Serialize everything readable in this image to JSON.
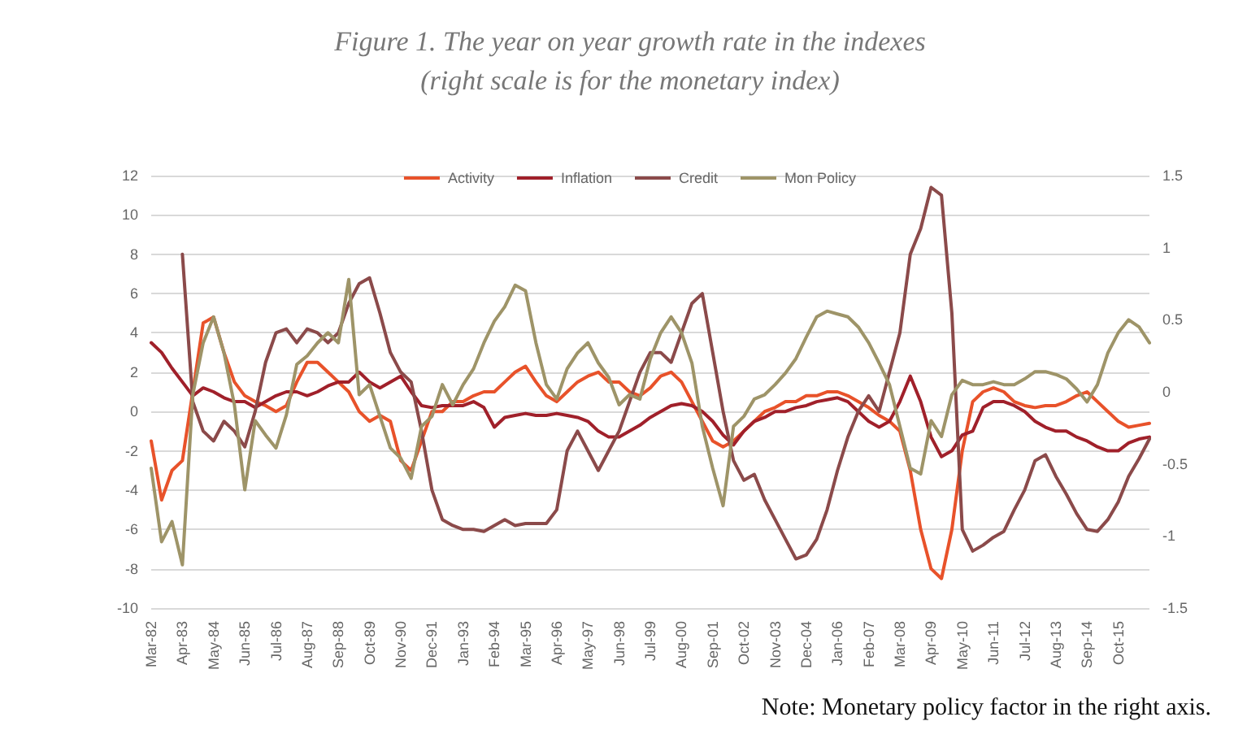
{
  "chart_data": {
    "type": "line",
    "title": "Figure 1. The year on year growth rate in the indexes",
    "subtitle": "(right scale is for the monetary index)",
    "annotations": [
      "Note: Monetary policy factor in the right axis."
    ],
    "categories": [
      "Mar-82",
      null,
      null,
      "Apr-83",
      null,
      null,
      "May-84",
      null,
      null,
      "Jun-85",
      null,
      null,
      "Jul-86",
      null,
      null,
      "Aug-87",
      null,
      null,
      "Sep-88",
      null,
      null,
      "Oct-89",
      null,
      null,
      "Nov-90",
      null,
      null,
      "Dec-91",
      null,
      null,
      "Jan-93",
      null,
      null,
      "Feb-94",
      null,
      null,
      "Mar-95",
      null,
      null,
      "Apr-96",
      null,
      null,
      "May-97",
      null,
      null,
      "Jun-98",
      null,
      null,
      "Jul-99",
      null,
      null,
      "Aug-00",
      null,
      null,
      "Sep-01",
      null,
      null,
      "Oct-02",
      null,
      null,
      "Nov-03",
      null,
      null,
      "Dec-04",
      null,
      null,
      "Jan-06",
      null,
      null,
      "Feb-07",
      null,
      null,
      "Mar-08",
      null,
      null,
      "Apr-09",
      null,
      null,
      "May-10",
      null,
      null,
      "Jun-11",
      null,
      null,
      "Jul-12",
      null,
      null,
      "Aug-13",
      null,
      null,
      "Sep-14",
      null,
      null,
      "Oct-15",
      null,
      null,
      null
    ],
    "series": [
      {
        "name": "Activity",
        "color": "#e8522a",
        "values": [
          -1.5,
          -4.5,
          -3,
          -2.5,
          1,
          4.5,
          4.8,
          3,
          1.5,
          0.8,
          0.5,
          0.3,
          0,
          0.3,
          1.5,
          2.5,
          2.5,
          2,
          1.5,
          1,
          0,
          -0.5,
          -0.2,
          -0.5,
          -2.5,
          -3,
          -1.5,
          0,
          0,
          0.5,
          0.5,
          0.8,
          1,
          1,
          1.5,
          2,
          2.3,
          1.5,
          0.8,
          0.5,
          1,
          1.5,
          1.8,
          2,
          1.5,
          1.5,
          1,
          0.8,
          1.2,
          1.8,
          2,
          1.5,
          0.5,
          -0.5,
          -1.5,
          -1.8,
          -1.5,
          -1,
          -0.5,
          0,
          0.2,
          0.5,
          0.5,
          0.8,
          0.8,
          1,
          1,
          0.8,
          0.5,
          0.2,
          -0.2,
          -0.5,
          -1,
          -3,
          -6,
          -8,
          -8.5,
          -6,
          -2,
          0.5,
          1,
          1.2,
          1,
          0.5,
          0.3,
          0.2,
          0.3,
          0.3,
          0.5,
          0.8,
          1,
          0.5,
          0,
          -0.5,
          -0.8,
          -0.7,
          -0.6
        ]
      },
      {
        "name": "Inflation",
        "color": "#a0202a",
        "values": [
          3.5,
          3,
          2.2,
          1.5,
          0.8,
          1.2,
          1,
          0.7,
          0.5,
          0.5,
          0.2,
          0.5,
          0.8,
          1,
          1,
          0.8,
          1,
          1.3,
          1.5,
          1.5,
          2,
          1.5,
          1.2,
          1.5,
          1.8,
          1,
          0.3,
          0.2,
          0.3,
          0.3,
          0.3,
          0.5,
          0.2,
          -0.8,
          -0.3,
          -0.2,
          -0.1,
          -0.2,
          -0.2,
          -0.1,
          -0.2,
          -0.3,
          -0.5,
          -1,
          -1.3,
          -1.3,
          -1,
          -0.7,
          -0.3,
          0,
          0.3,
          0.4,
          0.3,
          0,
          -0.5,
          -1.2,
          -1.7,
          -1,
          -0.5,
          -0.3,
          0,
          0,
          0.2,
          0.3,
          0.5,
          0.6,
          0.7,
          0.5,
          0,
          -0.5,
          -0.8,
          -0.5,
          0.5,
          1.8,
          0.5,
          -1.3,
          -2.3,
          -2,
          -1.2,
          -1,
          0.2,
          0.5,
          0.5,
          0.3,
          0,
          -0.5,
          -0.8,
          -1,
          -1,
          -1.3,
          -1.5,
          -1.8,
          -2,
          -2,
          -1.6,
          -1.4,
          -1.3
        ]
      },
      {
        "name": "Credit",
        "color": "#8b4a4a",
        "values": [
          null,
          null,
          null,
          8,
          0.5,
          -1,
          -1.5,
          -0.5,
          -1,
          -1.8,
          0,
          2.5,
          4,
          4.2,
          3.5,
          4.2,
          4,
          3.5,
          4,
          5.5,
          6.5,
          6.8,
          5,
          3,
          2,
          1.5,
          -1,
          -4,
          -5.5,
          -5.8,
          -6,
          -6,
          -6.1,
          -5.8,
          -5.5,
          -5.8,
          -5.7,
          -5.7,
          -5.7,
          -5,
          -2,
          -1,
          -2,
          -3,
          -2,
          -1,
          0.5,
          2,
          3,
          3,
          2.5,
          4,
          5.5,
          6,
          3,
          0,
          -2.5,
          -3.5,
          -3.2,
          -4.5,
          -5.5,
          -6.5,
          -7.5,
          -7.3,
          -6.5,
          -5,
          -3,
          -1.3,
          0,
          0.8,
          0,
          2,
          4,
          8,
          9.3,
          11.4,
          11,
          5,
          -6,
          -7.1,
          -6.8,
          -6.4,
          -6.1,
          -5,
          -4,
          -2.5,
          -2.2,
          -3.3,
          -4.2,
          -5.2,
          -6,
          -6.1,
          -5.5,
          -4.6,
          -3.3,
          -2.4,
          -1.4
        ]
      },
      {
        "name": "Mon Policy",
        "color": "#9e9468",
        "axis": "y2",
        "values": [
          -0.53,
          -1.04,
          -0.9,
          -1.2,
          -0.02,
          0.34,
          0.52,
          0.27,
          -0.09,
          -0.68,
          -0.2,
          -0.3,
          -0.39,
          -0.16,
          0.19,
          0.25,
          0.34,
          0.41,
          0.34,
          0.78,
          -0.02,
          0.05,
          -0.17,
          -0.39,
          -0.46,
          -0.6,
          -0.24,
          -0.17,
          0.05,
          -0.09,
          0.05,
          0.16,
          0.34,
          0.49,
          0.59,
          0.74,
          0.7,
          0.34,
          0.05,
          -0.05,
          0.16,
          0.27,
          0.34,
          0.2,
          0.1,
          -0.09,
          -0.02,
          -0.05,
          0.23,
          0.41,
          0.52,
          0.41,
          0.2,
          -0.24,
          -0.53,
          -0.79,
          -0.24,
          -0.17,
          -0.05,
          -0.02,
          0.05,
          0.13,
          0.23,
          0.38,
          0.52,
          0.56,
          0.54,
          0.52,
          0.45,
          0.34,
          0.2,
          0.05,
          -0.24,
          -0.53,
          -0.57,
          -0.2,
          -0.31,
          -0.02,
          0.08,
          0.05,
          0.05,
          0.07,
          0.05,
          0.05,
          0.09,
          0.14,
          0.14,
          0.12,
          0.09,
          0.02,
          -0.07,
          0.05,
          0.27,
          0.41,
          0.5,
          0.45,
          0.34
        ]
      }
    ],
    "ylim": [
      -10,
      12
    ],
    "yticks": [
      -10,
      -8,
      -6,
      -4,
      -2,
      0,
      2,
      4,
      6,
      8,
      10,
      12
    ],
    "y2lim": [
      -1.5,
      1.5
    ],
    "y2ticks": [
      -1.5,
      -1,
      -0.5,
      0,
      0.5,
      1,
      1.5
    ],
    "grid": "y",
    "legend": "top",
    "marker": "none",
    "line_style": "solid"
  }
}
